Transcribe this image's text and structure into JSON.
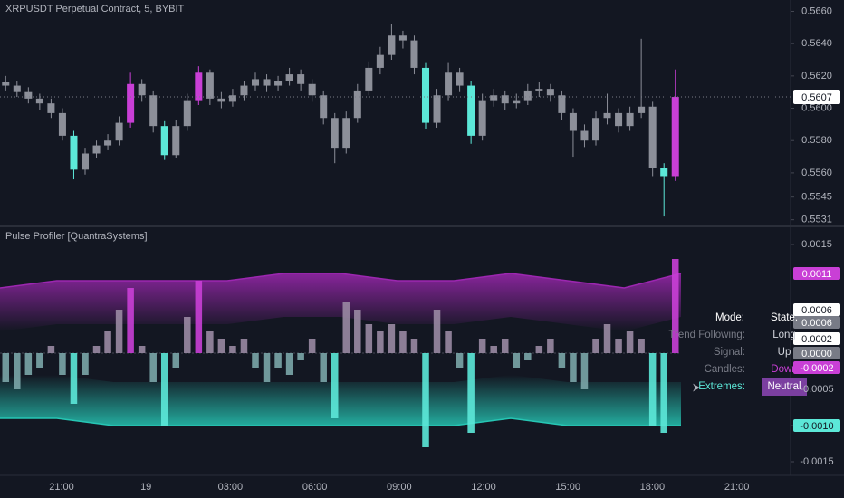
{
  "chart_data": [
    {
      "type": "candlestick",
      "title": "XRPUSDT Perpetual Contract, 5, BYBIT",
      "open": [
        0.5616,
        0.5614,
        0.561,
        0.5606,
        0.5603,
        0.5597,
        0.5583,
        0.5562,
        0.5572,
        0.5577,
        0.558,
        0.5591,
        0.5615,
        0.5608,
        0.5589,
        0.5571,
        0.5589,
        0.5605,
        0.5622,
        0.5606,
        0.5604,
        0.5608,
        0.5614,
        0.5618,
        0.5614,
        0.5617,
        0.5621,
        0.5615,
        0.5608,
        0.5594,
        0.5575,
        0.5594,
        0.5611,
        0.5625,
        0.5633,
        0.5645,
        0.5642,
        0.5625,
        0.5591,
        0.5608,
        0.5622,
        0.5614,
        0.5583,
        0.5605,
        0.5608,
        0.5603,
        0.5605,
        0.5611,
        0.5612,
        0.5608,
        0.5597,
        0.5586,
        0.558,
        0.5594,
        0.5597,
        0.5589,
        0.5597,
        0.5601,
        0.5563,
        0.5558
      ],
      "high": [
        0.562,
        0.5617,
        0.5613,
        0.5609,
        0.5606,
        0.56,
        0.5586,
        0.5575,
        0.558,
        0.5584,
        0.5595,
        0.5622,
        0.5618,
        0.5611,
        0.5592,
        0.5593,
        0.5609,
        0.5626,
        0.5624,
        0.561,
        0.5612,
        0.5617,
        0.5622,
        0.5621,
        0.562,
        0.5625,
        0.5624,
        0.5618,
        0.5611,
        0.5597,
        0.5598,
        0.5615,
        0.5629,
        0.5638,
        0.5652,
        0.5648,
        0.5645,
        0.5628,
        0.5612,
        0.5628,
        0.5625,
        0.5617,
        0.5609,
        0.5612,
        0.5611,
        0.5609,
        0.5615,
        0.5616,
        0.5615,
        0.5611,
        0.56,
        0.559,
        0.5598,
        0.5609,
        0.56,
        0.5601,
        0.5643,
        0.5604,
        0.5566,
        0.5624
      ],
      "low": [
        0.5611,
        0.5607,
        0.5603,
        0.5599,
        0.5594,
        0.558,
        0.5556,
        0.5559,
        0.5569,
        0.5574,
        0.5577,
        0.5588,
        0.5604,
        0.5585,
        0.5568,
        0.5569,
        0.5586,
        0.5602,
        0.5602,
        0.56,
        0.5601,
        0.5605,
        0.5611,
        0.561,
        0.5611,
        0.5614,
        0.5611,
        0.5604,
        0.559,
        0.5566,
        0.5572,
        0.5591,
        0.5608,
        0.5621,
        0.563,
        0.5637,
        0.5621,
        0.5587,
        0.5588,
        0.5605,
        0.561,
        0.5578,
        0.558,
        0.5601,
        0.5599,
        0.56,
        0.5602,
        0.5607,
        0.5604,
        0.5593,
        0.557,
        0.5576,
        0.5577,
        0.559,
        0.5585,
        0.5586,
        0.5594,
        0.5558,
        0.5533,
        0.5555
      ],
      "close": [
        0.5614,
        0.561,
        0.5606,
        0.5603,
        0.5597,
        0.5583,
        0.5562,
        0.5572,
        0.5577,
        0.558,
        0.5591,
        0.5615,
        0.5608,
        0.5589,
        0.5571,
        0.5589,
        0.5605,
        0.5622,
        0.5606,
        0.5604,
        0.5608,
        0.5614,
        0.5618,
        0.5614,
        0.5617,
        0.5621,
        0.5615,
        0.5608,
        0.5594,
        0.5575,
        0.5594,
        0.5611,
        0.5625,
        0.5633,
        0.5645,
        0.5642,
        0.5625,
        0.5591,
        0.5608,
        0.5622,
        0.5614,
        0.5583,
        0.5605,
        0.5608,
        0.5603,
        0.5605,
        0.5611,
        0.5612,
        0.5608,
        0.5597,
        0.5586,
        0.558,
        0.5594,
        0.5597,
        0.5589,
        0.5597,
        0.5601,
        0.5563,
        0.5558,
        0.5607
      ],
      "colors": [
        "#8c8f99",
        "#8c8f99",
        "#8c8f99",
        "#8c8f99",
        "#8c8f99",
        "#8c8f99",
        "#5ce8d8",
        "#8c8f99",
        "#8c8f99",
        "#8c8f99",
        "#8c8f99",
        "#c93fd6",
        "#8c8f99",
        "#8c8f99",
        "#5ce8d8",
        "#8c8f99",
        "#8c8f99",
        "#c93fd6",
        "#8c8f99",
        "#8c8f99",
        "#8c8f99",
        "#8c8f99",
        "#8c8f99",
        "#8c8f99",
        "#8c8f99",
        "#8c8f99",
        "#8c8f99",
        "#8c8f99",
        "#8c8f99",
        "#8c8f99",
        "#8c8f99",
        "#8c8f99",
        "#8c8f99",
        "#8c8f99",
        "#8c8f99",
        "#8c8f99",
        "#8c8f99",
        "#5ce8d8",
        "#8c8f99",
        "#8c8f99",
        "#8c8f99",
        "#5ce8d8",
        "#8c8f99",
        "#8c8f99",
        "#8c8f99",
        "#8c8f99",
        "#8c8f99",
        "#8c8f99",
        "#8c8f99",
        "#8c8f99",
        "#8c8f99",
        "#8c8f99",
        "#8c8f99",
        "#8c8f99",
        "#8c8f99",
        "#8c8f99",
        "#8c8f99",
        "#8c8f99",
        "#5ce8d8",
        "#c93fd6"
      ],
      "ylim": [
        0.5528,
        0.5667
      ],
      "yticks": [
        {
          "value": 0.566,
          "label": "0.5660"
        },
        {
          "value": 0.564,
          "label": "0.5640"
        },
        {
          "value": 0.562,
          "label": "0.5620"
        },
        {
          "value": 0.56,
          "label": "0.5600"
        },
        {
          "value": 0.558,
          "label": "0.5580"
        },
        {
          "value": 0.556,
          "label": "0.5560"
        },
        0.5545,
        0.5531
      ],
      "last_price": 0.5607
    },
    {
      "type": "bar",
      "title": "Pulse Profiler [QuantraSystems]",
      "values": [
        -0.0004,
        -0.0005,
        -0.0003,
        -0.0002,
        0.0001,
        -0.0003,
        -0.0007,
        -0.0003,
        0.0001,
        0.0003,
        0.0006,
        0.0009,
        0.0001,
        -0.0004,
        -0.001,
        -0.0002,
        0.0005,
        0.001,
        0.0003,
        0.0002,
        0.0001,
        0.0002,
        -0.0002,
        -0.0004,
        -0.0002,
        -0.0003,
        -0.0001,
        0.0002,
        -0.0004,
        -0.0009,
        0.0007,
        0.0006,
        0.0004,
        0.0003,
        0.0004,
        0.0003,
        0.0002,
        -0.0013,
        0.0006,
        0.0003,
        -0.0002,
        -0.0011,
        0.0002,
        0.0001,
        0.0002,
        -0.0002,
        -0.0001,
        0.0001,
        0.0002,
        -0.0002,
        -0.0004,
        -0.0005,
        0.0002,
        0.0004,
        0.0002,
        0.0003,
        0.0002,
        -0.001,
        -0.0011,
        0.0013
      ],
      "colors": [
        "#7ba6a8",
        "#7ba6a8",
        "#7ba6a8",
        "#7ba6a8",
        "#9a8aa3",
        "#7ba6a8",
        "#5ce8d8",
        "#7ba6a8",
        "#9a8aa3",
        "#9a8aa3",
        "#9a8aa3",
        "#c93fd6",
        "#9a8aa3",
        "#7ba6a8",
        "#5ce8d8",
        "#7ba6a8",
        "#9a8aa3",
        "#c93fd6",
        "#9a8aa3",
        "#9a8aa3",
        "#9a8aa3",
        "#9a8aa3",
        "#7ba6a8",
        "#7ba6a8",
        "#7ba6a8",
        "#7ba6a8",
        "#7ba6a8",
        "#9a8aa3",
        "#7ba6a8",
        "#5ce8d8",
        "#9a8aa3",
        "#9a8aa3",
        "#9a8aa3",
        "#9a8aa3",
        "#9a8aa3",
        "#9a8aa3",
        "#9a8aa3",
        "#5ce8d8",
        "#9a8aa3",
        "#9a8aa3",
        "#7ba6a8",
        "#5ce8d8",
        "#9a8aa3",
        "#9a8aa3",
        "#9a8aa3",
        "#7ba6a8",
        "#7ba6a8",
        "#9a8aa3",
        "#9a8aa3",
        "#7ba6a8",
        "#7ba6a8",
        "#7ba6a8",
        "#9a8aa3",
        "#9a8aa3",
        "#9a8aa3",
        "#9a8aa3",
        "#9a8aa3",
        "#5ce8d8",
        "#5ce8d8",
        "#c93fd6"
      ],
      "bands": [
        {
          "color": "#9c27b0",
          "values": [
            0.0009,
            0.001,
            0.001,
            0.001,
            0.001,
            0.0011,
            0.0011,
            0.001,
            0.001,
            0.0011,
            0.001,
            0.0009,
            0.0011
          ]
        },
        {
          "color": "#26c6b4",
          "values": [
            -0.0009,
            -0.0009,
            -0.001,
            -0.001,
            -0.001,
            -0.001,
            -0.001,
            -0.001,
            -0.001,
            -0.0009,
            -0.001,
            -0.001,
            -0.001
          ]
        }
      ],
      "ylim": [
        -0.0016875,
        0.00175
      ],
      "yticks": [
        0.0015,
        -0.0005,
        {
          "value": -0.001,
          "label": "-0.0010"
        },
        -0.0015
      ],
      "axis_badges": [
        {
          "value": 0.0011,
          "color": "#c93fd6"
        },
        {
          "value": 0.0006,
          "color": "#ffffff"
        },
        {
          "value": 0.0006,
          "color": "#787b86"
        },
        {
          "value": 0.0002,
          "color": "#ffffff"
        },
        {
          "value": 0,
          "label": "0.0000",
          "color": "#787b86"
        },
        {
          "value": -0.0002,
          "color": "#c93fd6"
        },
        {
          "value": -0.001,
          "label": "-0.0010",
          "color": "#5ce8d8"
        }
      ]
    }
  ],
  "time_axis": [
    "21:00",
    "19",
    "03:00",
    "06:00",
    "09:00",
    "12:00",
    "15:00",
    "18:00",
    "21:00"
  ],
  "table": {
    "header": [
      "Mode:",
      "State:"
    ],
    "rows": [
      [
        "Trend Following:",
        "Long"
      ],
      [
        "Signal:",
        "Up"
      ],
      [
        "Candles:",
        "Down"
      ],
      [
        "Extremes:",
        "Neutral"
      ]
    ]
  }
}
